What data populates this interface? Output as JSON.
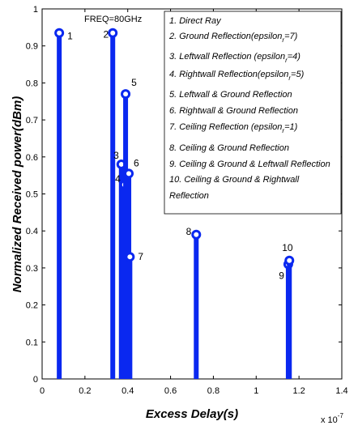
{
  "chart_data": {
    "type": "stem",
    "annotation": "FREQ=80GHz",
    "xlabel": "Excess Delay(s)",
    "ylabel": "Normalized Received power(dBm)",
    "x_multiplier_base": "x 10",
    "x_multiplier_exp": "-7",
    "xlim": [
      0,
      1.4
    ],
    "ylim": [
      0,
      1
    ],
    "x_ticks": [
      0,
      0.2,
      0.4,
      0.6,
      0.8,
      1,
      1.2,
      1.4
    ],
    "y_ticks": [
      0,
      0.1,
      0.2,
      0.3,
      0.4,
      0.5,
      0.6,
      0.7,
      0.8,
      0.9,
      1
    ],
    "x_tick_labels": [
      "0",
      "0.2",
      "0.4",
      "0.6",
      "0.8",
      "1",
      "1.2",
      "1.4"
    ],
    "y_tick_labels": [
      "0",
      "0.1",
      "0.2",
      "0.3",
      "0.4",
      "0.5",
      "0.6",
      "0.7",
      "0.8",
      "0.9",
      "1"
    ],
    "stem_color": "#0a28f0",
    "points": [
      {
        "label": "1",
        "x": 0.08,
        "y": 0.935
      },
      {
        "label": "2",
        "x": 0.33,
        "y": 0.935
      },
      {
        "label": "3",
        "x": 0.37,
        "y": 0.58
      },
      {
        "label": "4",
        "x": 0.385,
        "y": 0.525
      },
      {
        "label": "5",
        "x": 0.39,
        "y": 0.77
      },
      {
        "label": "6",
        "x": 0.405,
        "y": 0.555
      },
      {
        "label": "7",
        "x": 0.41,
        "y": 0.33
      },
      {
        "label": "8",
        "x": 0.72,
        "y": 0.39
      },
      {
        "label": "9",
        "x": 1.15,
        "y": 0.31
      },
      {
        "label": "10",
        "x": 1.155,
        "y": 0.32
      }
    ],
    "legend": [
      {
        "text": "1. Direct Ray"
      },
      {
        "text": "2. Ground Reflection(epsilon",
        "sub": "r",
        "tail": "=7)"
      },
      {
        "text": "3. Leftwall Reflection (epsilon",
        "sub": "r",
        "tail": "=4)"
      },
      {
        "text": "4. Rightwall Reflection(epsilon",
        "sub": "r",
        "tail": "=5)"
      },
      {
        "text": "5. Leftwall & Ground Reflection"
      },
      {
        "text": "6. Rightwall & Ground Reflection"
      },
      {
        "text": "7. Ceiling Reflection (epsilon",
        "sub": "r",
        "tail": "=1)"
      },
      {
        "text": "8. Ceiling & Ground Reflection"
      },
      {
        "text": "9. Ceiling & Ground  & Leftwall Reflection"
      },
      {
        "text": "10. Ceiling & Ground & Rightwall"
      },
      {
        "text": "Reflection"
      }
    ]
  }
}
